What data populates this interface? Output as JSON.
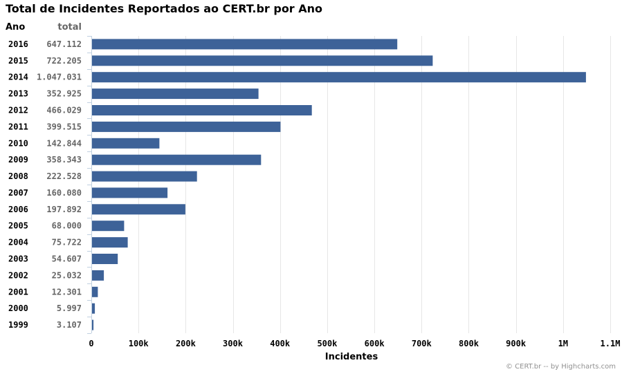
{
  "chart_data": {
    "type": "bar",
    "orientation": "horizontal",
    "title": "Total de Incidentes Reportados ao CERT.br por Ano",
    "category_header": "Ano",
    "value_header": "total",
    "categories": [
      "2016",
      "2015",
      "2014",
      "2013",
      "2012",
      "2011",
      "2010",
      "2009",
      "2008",
      "2007",
      "2006",
      "2005",
      "2004",
      "2003",
      "2002",
      "2001",
      "2000",
      "1999"
    ],
    "values": [
      647112,
      722205,
      1047031,
      352925,
      466029,
      399515,
      142844,
      358343,
      222528,
      160080,
      197892,
      68000,
      75722,
      54607,
      25032,
      12301,
      5997,
      3107
    ],
    "value_labels": [
      "647.112",
      "722.205",
      "1.047.031",
      "352.925",
      "466.029",
      "399.515",
      "142.844",
      "358.343",
      "222.528",
      "160.080",
      "197.892",
      "68.000",
      "75.722",
      "54.607",
      "25.032",
      "12.301",
      "5.997",
      "3.107"
    ],
    "xlabel": "Incidentes",
    "xlim": [
      0,
      1100000
    ],
    "xticks": [
      0,
      100000,
      200000,
      300000,
      400000,
      500000,
      600000,
      700000,
      800000,
      900000,
      1000000,
      1100000
    ],
    "xtick_labels": [
      "0",
      "100k",
      "200k",
      "300k",
      "400k",
      "500k",
      "600k",
      "700k",
      "800k",
      "900k",
      "1M",
      "1.1M"
    ],
    "bar_color": "#3d6298",
    "grid": true,
    "credits": "© CERT.br -- by Highcharts.com"
  }
}
